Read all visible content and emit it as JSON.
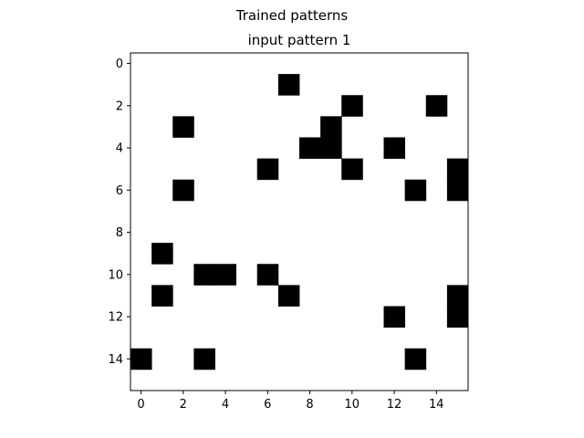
{
  "figure": {
    "suptitle": "Trained patterns",
    "title": "input pattern 1"
  },
  "chart_data": {
    "type": "heatmap",
    "title": "input pattern 1",
    "suptitle": "Trained patterns",
    "xlabel": "",
    "ylabel": "",
    "rows": 16,
    "cols": 16,
    "xlim": [
      -0.5,
      15.5
    ],
    "ylim": [
      15.5,
      -0.5
    ],
    "x_ticks": [
      0,
      2,
      4,
      6,
      8,
      10,
      12,
      14
    ],
    "y_ticks": [
      0,
      2,
      4,
      6,
      8,
      10,
      12,
      14
    ],
    "grid": false,
    "colormap": {
      "0": "#ffffff",
      "1": "#000000"
    },
    "cells_value_1": [
      [
        1,
        7
      ],
      [
        2,
        10
      ],
      [
        2,
        14
      ],
      [
        3,
        2
      ],
      [
        3,
        9
      ],
      [
        4,
        8
      ],
      [
        4,
        9
      ],
      [
        4,
        12
      ],
      [
        5,
        6
      ],
      [
        5,
        10
      ],
      [
        5,
        15
      ],
      [
        6,
        2
      ],
      [
        6,
        13
      ],
      [
        6,
        15
      ],
      [
        9,
        1
      ],
      [
        10,
        3
      ],
      [
        10,
        4
      ],
      [
        10,
        6
      ],
      [
        11,
        1
      ],
      [
        11,
        7
      ],
      [
        11,
        15
      ],
      [
        12,
        12
      ],
      [
        12,
        15
      ],
      [
        14,
        0
      ],
      [
        14,
        3
      ],
      [
        14,
        13
      ]
    ]
  }
}
